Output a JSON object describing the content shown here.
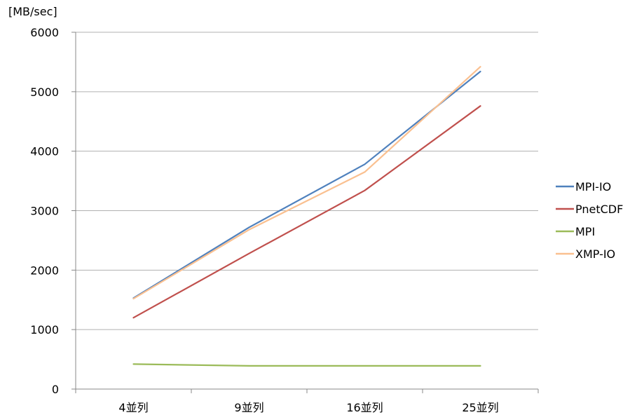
{
  "chart_data": {
    "type": "line",
    "title": "",
    "xlabel": "",
    "ylabel": "[MB/sec]",
    "categories": [
      "4並列",
      "9並列",
      "16並列",
      "25並列"
    ],
    "ylim": [
      0,
      6000
    ],
    "yticks": [
      0,
      1000,
      2000,
      3000,
      4000,
      5000,
      6000
    ],
    "ytick_labels": [
      "0",
      "1000",
      "2000",
      "3000",
      "4000",
      "5000",
      "6000"
    ],
    "grid": true,
    "legend_position": "right",
    "series": [
      {
        "name": "MPI-IO",
        "color": "#4f81bd",
        "values": [
          1530,
          2720,
          3780,
          5340
        ]
      },
      {
        "name": "PnetCDF",
        "color": "#c0504d",
        "values": [
          1200,
          2280,
          3340,
          4760
        ]
      },
      {
        "name": "MPI",
        "color": "#9bbb59",
        "values": [
          420,
          390,
          390,
          390
        ]
      },
      {
        "name": "XMP-IO",
        "color": "#fac090",
        "values": [
          1520,
          2680,
          3650,
          5420
        ]
      }
    ]
  }
}
